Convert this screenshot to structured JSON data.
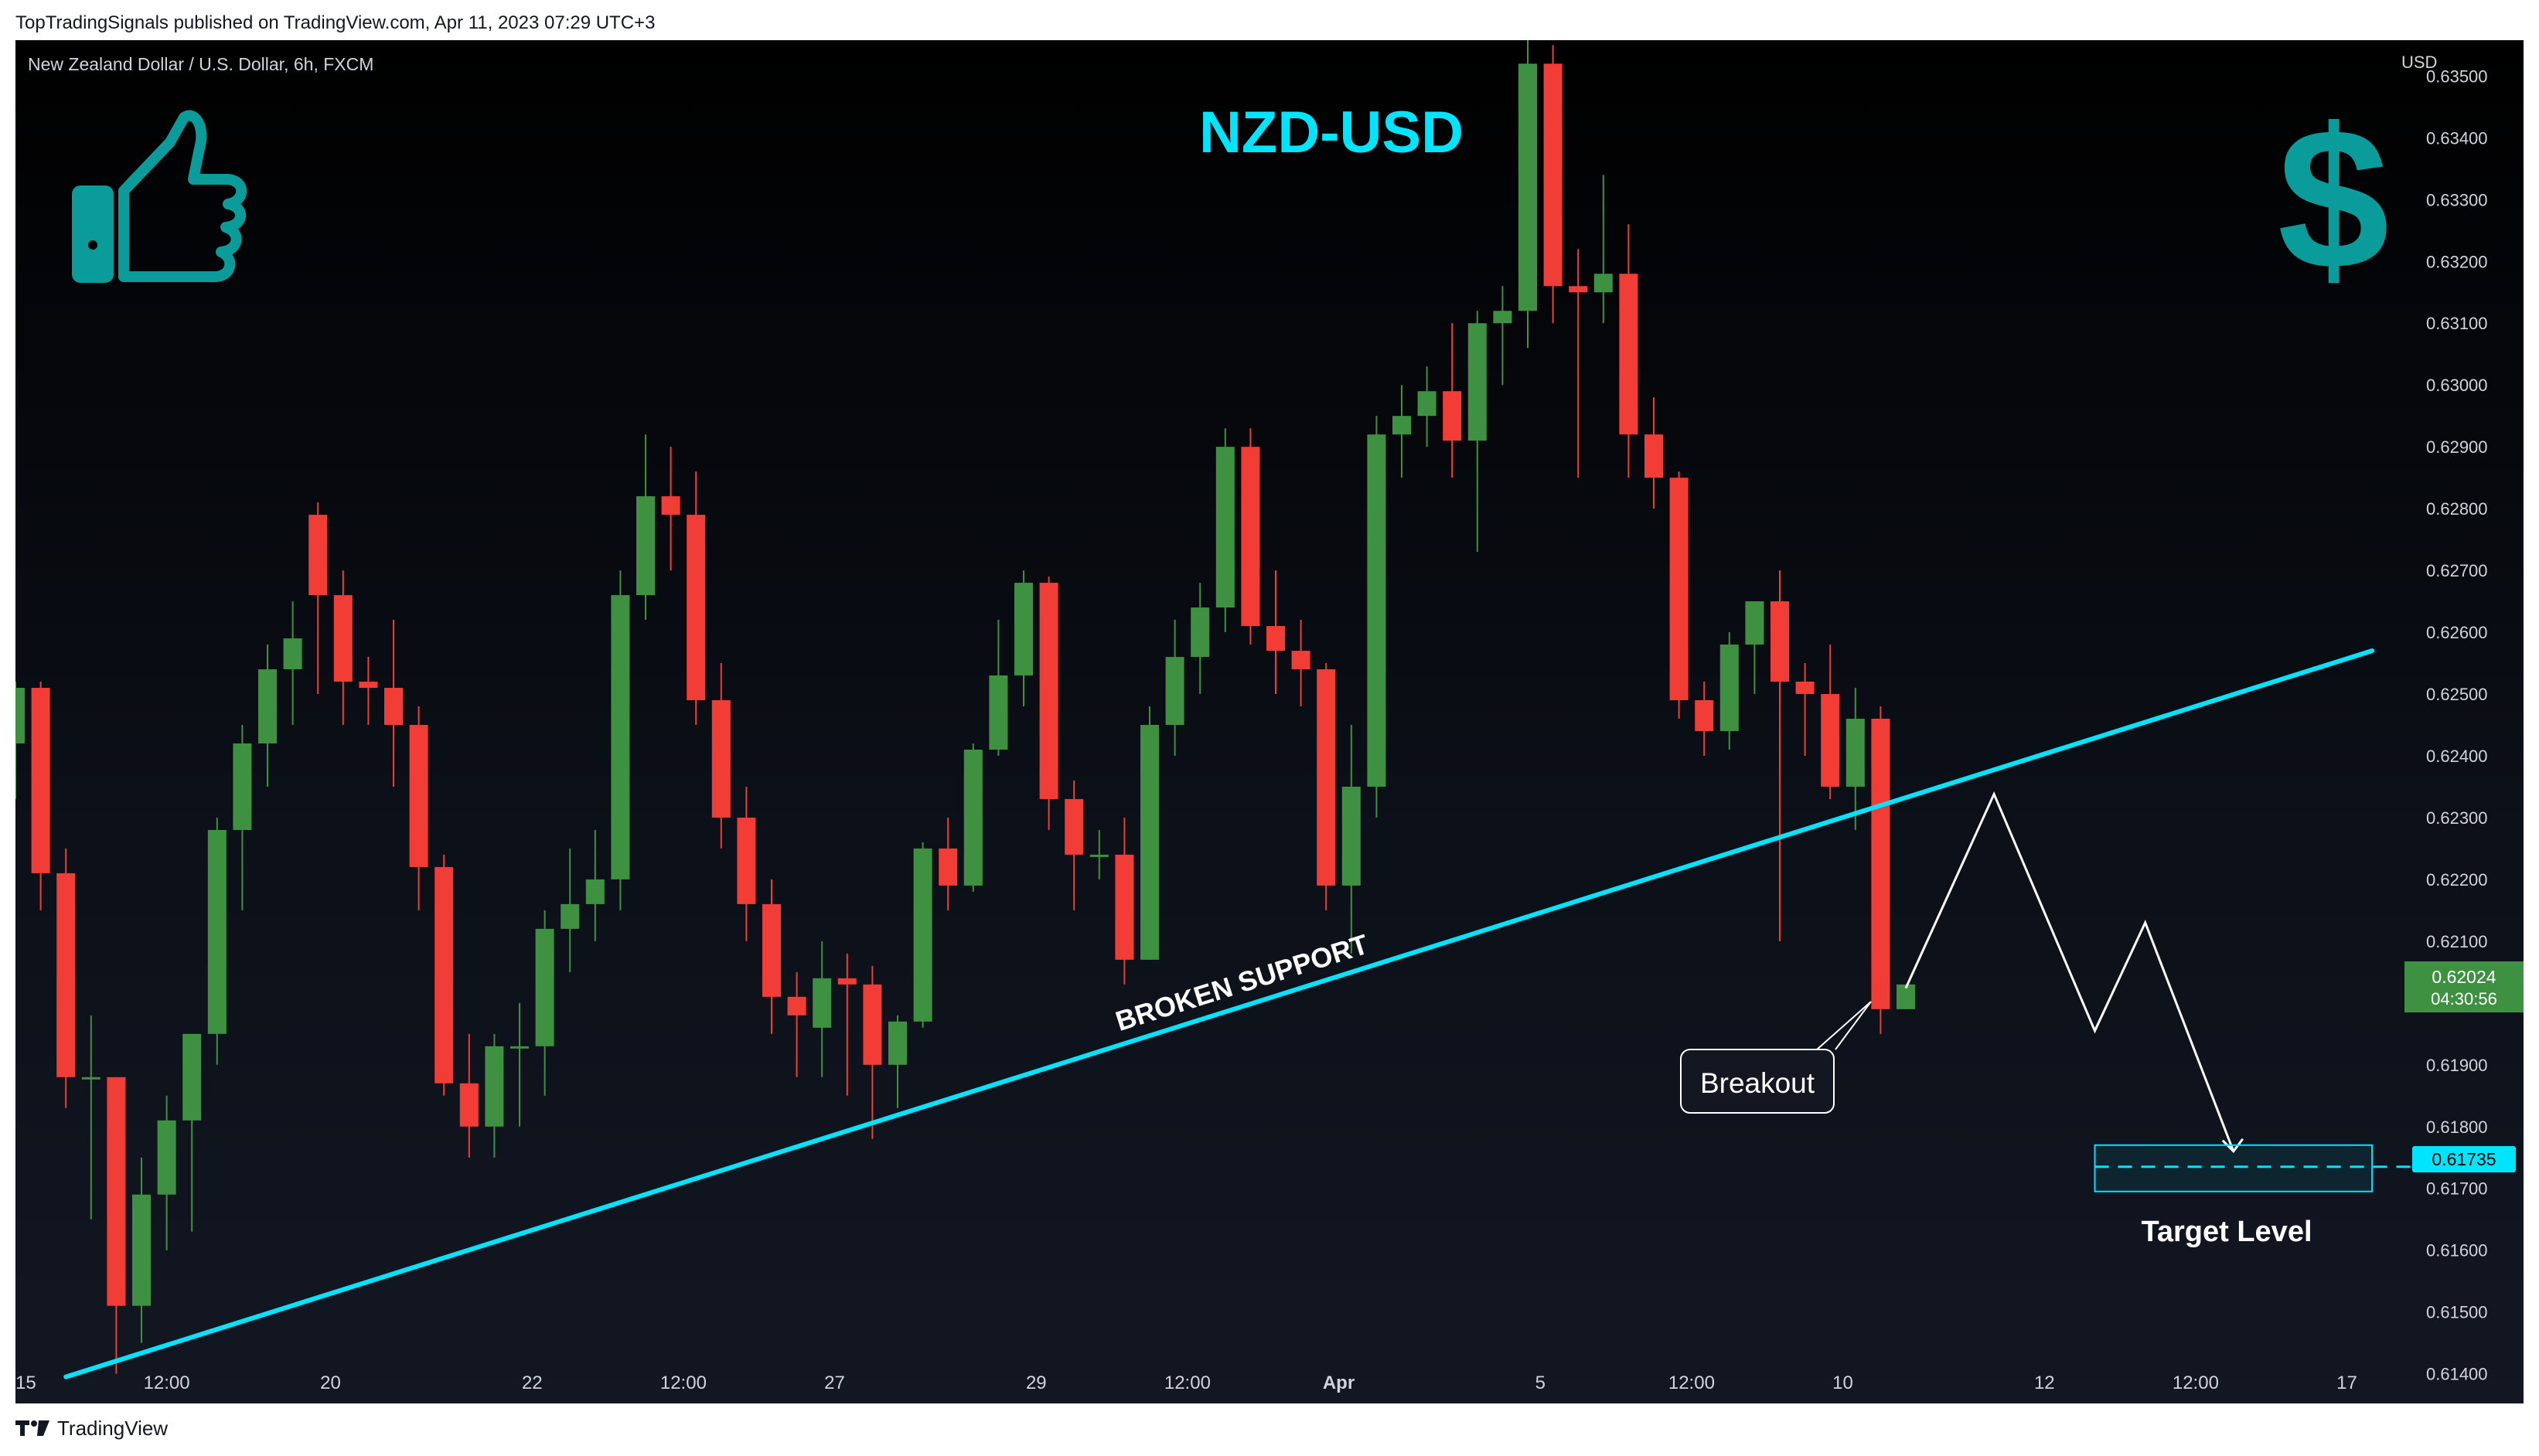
{
  "header": {
    "published": "TopTradingSignals published on TradingView.com, Apr 11, 2023 07:29 UTC+3"
  },
  "footer": {
    "brand": "TradingView"
  },
  "chart_info": {
    "symbol": "New Zealand Dollar / U.S. Dollar, 6h, FXCM",
    "title": "NZD-USD",
    "currency": "USD",
    "icons": [
      "thumbs-up-icon",
      "dollar-sign-icon"
    ],
    "price_tag": {
      "price": "0.62024",
      "countdown": "04:30:56"
    },
    "target_tag": "0.61735",
    "trendline_label": "BROKEN SUPPORT",
    "breakout_label": "Breakout",
    "target_label": "Target Level"
  },
  "colors": {
    "background": "#000000",
    "up": "#3f9142",
    "down": "#f23c36",
    "accent": "#00e5ff",
    "icon": "#0a9b9b",
    "text": "#d1d4dc"
  },
  "chart_data": {
    "type": "candlestick",
    "title": "NZD-USD",
    "ylabel": "USD",
    "ylim": [
      0.6135,
      0.6358
    ],
    "y_ticks": [
      "0.61400",
      "0.61500",
      "0.61600",
      "0.61700",
      "0.61800",
      "0.61900",
      "0.62000",
      "0.62100",
      "0.62200",
      "0.62300",
      "0.62400",
      "0.62500",
      "0.62600",
      "0.62700",
      "0.62800",
      "0.62900",
      "0.63000",
      "0.63100",
      "0.63200",
      "0.63300",
      "0.63400",
      "0.63500"
    ],
    "x_ticks": [
      {
        "label": "15",
        "bar": 0
      },
      {
        "label": "12:00",
        "bar": 6
      },
      {
        "label": "20",
        "bar": 12.5
      },
      {
        "label": "22",
        "bar": 20.5
      },
      {
        "label": "12:00",
        "bar": 26.5
      },
      {
        "label": "27",
        "bar": 32.5
      },
      {
        "label": "29",
        "bar": 40.5
      },
      {
        "label": "12:00",
        "bar": 46.5
      },
      {
        "label": "Apr",
        "bar": 52.5
      },
      {
        "label": "5",
        "bar": 60.5
      },
      {
        "label": "12:00",
        "bar": 66.5
      },
      {
        "label": "10",
        "bar": 72.5
      },
      {
        "label": "12",
        "bar": 80.5
      },
      {
        "label": "12:00",
        "bar": 86.5
      },
      {
        "label": "17",
        "bar": 92.5
      }
    ],
    "candles": [
      [
        0.6242,
        0.6252,
        0.6233,
        0.6251
      ],
      [
        0.6251,
        0.6252,
        0.6215,
        0.6221
      ],
      [
        0.6221,
        0.6225,
        0.6183,
        0.6188
      ],
      [
        0.6188,
        0.6198,
        0.6165,
        0.6188
      ],
      [
        0.6188,
        0.6188,
        0.614,
        0.6151
      ],
      [
        0.6151,
        0.6175,
        0.6145,
        0.6169
      ],
      [
        0.6169,
        0.6185,
        0.616,
        0.6181
      ],
      [
        0.6181,
        0.6195,
        0.6163,
        0.6195
      ],
      [
        0.6195,
        0.623,
        0.619,
        0.6228
      ],
      [
        0.6228,
        0.6245,
        0.6215,
        0.6242
      ],
      [
        0.6242,
        0.6258,
        0.6235,
        0.6254
      ],
      [
        0.6254,
        0.6265,
        0.6245,
        0.6259
      ],
      [
        0.6279,
        0.6281,
        0.625,
        0.6266
      ],
      [
        0.6266,
        0.627,
        0.6245,
        0.6252
      ],
      [
        0.6252,
        0.6256,
        0.6245,
        0.6251
      ],
      [
        0.6251,
        0.6262,
        0.6235,
        0.6245
      ],
      [
        0.6245,
        0.6248,
        0.6215,
        0.6222
      ],
      [
        0.6222,
        0.6224,
        0.6185,
        0.6187
      ],
      [
        0.6187,
        0.6195,
        0.6175,
        0.618
      ],
      [
        0.618,
        0.6195,
        0.6175,
        0.6193
      ],
      [
        0.6193,
        0.62,
        0.618,
        0.6193
      ],
      [
        0.6193,
        0.6215,
        0.6185,
        0.6212
      ],
      [
        0.6212,
        0.6225,
        0.6205,
        0.6216
      ],
      [
        0.6216,
        0.6228,
        0.621,
        0.622
      ],
      [
        0.622,
        0.627,
        0.6215,
        0.6266
      ],
      [
        0.6266,
        0.6292,
        0.6262,
        0.6282
      ],
      [
        0.6282,
        0.629,
        0.627,
        0.6279
      ],
      [
        0.6279,
        0.6286,
        0.6245,
        0.6249
      ],
      [
        0.6249,
        0.6255,
        0.6225,
        0.623
      ],
      [
        0.623,
        0.6235,
        0.621,
        0.6216
      ],
      [
        0.6216,
        0.622,
        0.6195,
        0.6201
      ],
      [
        0.6201,
        0.6205,
        0.6188,
        0.6198
      ],
      [
        0.6196,
        0.621,
        0.6188,
        0.6204
      ],
      [
        0.6204,
        0.6208,
        0.6185,
        0.6203
      ],
      [
        0.6203,
        0.6206,
        0.6178,
        0.619
      ],
      [
        0.619,
        0.6198,
        0.6183,
        0.6197
      ],
      [
        0.6197,
        0.6226,
        0.6196,
        0.6225
      ],
      [
        0.6225,
        0.623,
        0.6215,
        0.6219
      ],
      [
        0.6219,
        0.6242,
        0.6218,
        0.6241
      ],
      [
        0.6241,
        0.6262,
        0.624,
        0.6253
      ],
      [
        0.6253,
        0.627,
        0.6248,
        0.6268
      ],
      [
        0.6268,
        0.6269,
        0.6228,
        0.6233
      ],
      [
        0.6233,
        0.6236,
        0.6215,
        0.6224
      ],
      [
        0.6224,
        0.6228,
        0.622,
        0.6224
      ],
      [
        0.6224,
        0.623,
        0.6203,
        0.6207
      ],
      [
        0.6207,
        0.6248,
        0.6207,
        0.6245
      ],
      [
        0.6245,
        0.6262,
        0.624,
        0.6256
      ],
      [
        0.6256,
        0.6268,
        0.625,
        0.6264
      ],
      [
        0.6264,
        0.6293,
        0.626,
        0.629
      ],
      [
        0.629,
        0.6293,
        0.6258,
        0.6261
      ],
      [
        0.6261,
        0.627,
        0.625,
        0.6257
      ],
      [
        0.6257,
        0.6262,
        0.6248,
        0.6254
      ],
      [
        0.6254,
        0.6255,
        0.6215,
        0.6219
      ],
      [
        0.6219,
        0.6245,
        0.6208,
        0.6235
      ],
      [
        0.6235,
        0.6295,
        0.623,
        0.6292
      ],
      [
        0.6292,
        0.63,
        0.6285,
        0.6295
      ],
      [
        0.6295,
        0.6303,
        0.629,
        0.6299
      ],
      [
        0.6299,
        0.631,
        0.6285,
        0.6291
      ],
      [
        0.6291,
        0.6312,
        0.6273,
        0.631
      ],
      [
        0.631,
        0.6316,
        0.63,
        0.6312
      ],
      [
        0.6312,
        0.6359,
        0.6306,
        0.6352
      ],
      [
        0.6352,
        0.6355,
        0.631,
        0.6316
      ],
      [
        0.6316,
        0.6322,
        0.6285,
        0.6315
      ],
      [
        0.6315,
        0.6334,
        0.631,
        0.6318
      ],
      [
        0.6318,
        0.6326,
        0.6285,
        0.6292
      ],
      [
        0.6292,
        0.6298,
        0.628,
        0.6285
      ],
      [
        0.6285,
        0.6286,
        0.6246,
        0.6249
      ],
      [
        0.6249,
        0.6252,
        0.624,
        0.6244
      ],
      [
        0.6244,
        0.626,
        0.6241,
        0.6258
      ],
      [
        0.6258,
        0.6265,
        0.625,
        0.6265
      ],
      [
        0.6265,
        0.627,
        0.621,
        0.6252
      ],
      [
        0.6252,
        0.6255,
        0.624,
        0.625
      ],
      [
        0.625,
        0.6258,
        0.6233,
        0.6235
      ],
      [
        0.6235,
        0.6251,
        0.6228,
        0.6246
      ],
      [
        0.6246,
        0.6248,
        0.6195,
        0.6199
      ],
      [
        0.6199,
        0.6203,
        0.6199,
        0.6203
      ]
    ],
    "trendline": {
      "from": {
        "bar": 2,
        "price": 0.61395
      },
      "to": {
        "bar": 93.5,
        "price": 0.6257
      }
    },
    "projection": [
      {
        "bar": 75,
        "price": 0.62024
      },
      {
        "bar": 78.5,
        "price": 0.62338
      },
      {
        "bar": 82.5,
        "price": 0.61955
      },
      {
        "bar": 84.5,
        "price": 0.6213
      },
      {
        "bar": 88,
        "price": 0.6176
      }
    ],
    "target_level": 0.61735,
    "target_zone": [
      0.61695,
      0.6177
    ],
    "grid": false
  }
}
